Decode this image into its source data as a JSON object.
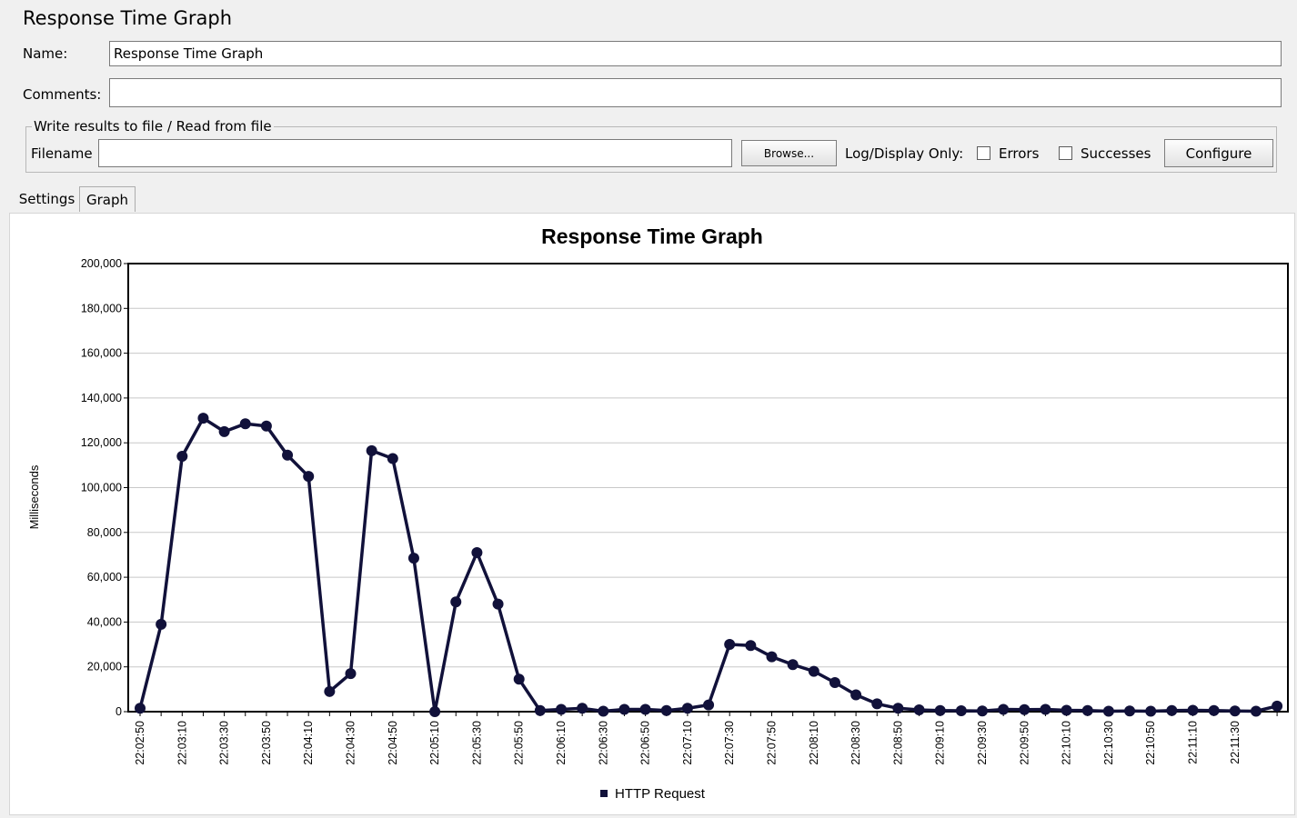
{
  "window": {
    "title": "Response Time Graph"
  },
  "form": {
    "name_label": "Name:",
    "name_value": "Response Time Graph",
    "comments_label": "Comments:",
    "comments_value": ""
  },
  "file_section": {
    "legend": "Write results to file / Read from file",
    "filename_label": "Filename",
    "filename_value": "",
    "browse_label": "Browse...",
    "log_display_label": "Log/Display Only:",
    "errors_label": "Errors",
    "errors_checked": false,
    "successes_label": "Successes",
    "successes_checked": false,
    "configure_label": "Configure"
  },
  "tabs": [
    {
      "label": "Settings",
      "selected": false
    },
    {
      "label": "Graph",
      "selected": true
    }
  ],
  "colors": {
    "series": "#11113a",
    "grid": "#c8c8c8"
  },
  "chart_data": {
    "type": "line",
    "title": "Response Time Graph",
    "xlabel": "",
    "ylabel": "Milliseconds",
    "ylim": [
      0,
      200000
    ],
    "yticks": [
      0,
      20000,
      40000,
      60000,
      80000,
      100000,
      120000,
      140000,
      160000,
      180000,
      200000
    ],
    "ytick_labels": [
      "0",
      "20,000",
      "40,000",
      "60,000",
      "80,000",
      "100,000",
      "120,000",
      "140,000",
      "160,000",
      "180,000",
      "200,000"
    ],
    "x": [
      "22:02:50",
      "22:03:00",
      "22:03:10",
      "22:03:20",
      "22:03:30",
      "22:03:40",
      "22:03:50",
      "22:04:00",
      "22:04:10",
      "22:04:20",
      "22:04:30",
      "22:04:40",
      "22:04:50",
      "22:05:00",
      "22:05:10",
      "22:05:20",
      "22:05:30",
      "22:05:40",
      "22:05:50",
      "22:06:00",
      "22:06:10",
      "22:06:20",
      "22:06:30",
      "22:06:40",
      "22:06:50",
      "22:07:00",
      "22:07:10",
      "22:07:20",
      "22:07:30",
      "22:07:40",
      "22:07:50",
      "22:08:00",
      "22:08:10",
      "22:08:20",
      "22:08:30",
      "22:08:40",
      "22:08:50",
      "22:09:00",
      "22:09:10",
      "22:09:20",
      "22:09:30",
      "22:09:40",
      "22:09:50",
      "22:10:00",
      "22:10:10",
      "22:10:20",
      "22:10:30",
      "22:10:40",
      "22:10:50",
      "22:11:00",
      "22:11:10",
      "22:11:20",
      "22:11:30",
      "22:11:40",
      "22:11:50"
    ],
    "tick_labels": [
      "22:02:50",
      "22:03:10",
      "22:03:30",
      "22:03:50",
      "22:04:10",
      "22:04:30",
      "22:04:50",
      "22:05:10",
      "22:05:30",
      "22:05:50",
      "22:06:10",
      "22:06:30",
      "22:06:50",
      "22:07:10",
      "22:07:30",
      "22:07:50",
      "22:08:10",
      "22:08:30",
      "22:08:50",
      "22:09:10",
      "22:09:30",
      "22:09:50",
      "22:10:10",
      "22:10:30",
      "22:10:50",
      "22:11:10",
      "22:11:30"
    ],
    "series": [
      {
        "name": "HTTP Request",
        "values": [
          1500,
          39000,
          114000,
          131000,
          125000,
          128500,
          127500,
          114500,
          105000,
          9000,
          17000,
          116500,
          113000,
          68500,
          0,
          49000,
          71000,
          48000,
          14500,
          500,
          1000,
          1500,
          200,
          1000,
          1000,
          500,
          1500,
          3000,
          30000,
          29500,
          24500,
          21000,
          18000,
          13000,
          7500,
          3500,
          1500,
          800,
          500,
          400,
          300,
          1000,
          900,
          1000,
          600,
          500,
          200,
          300,
          200,
          500,
          600,
          500,
          300,
          200,
          2500
        ]
      }
    ],
    "legend_position": "bottom",
    "grid": true
  }
}
